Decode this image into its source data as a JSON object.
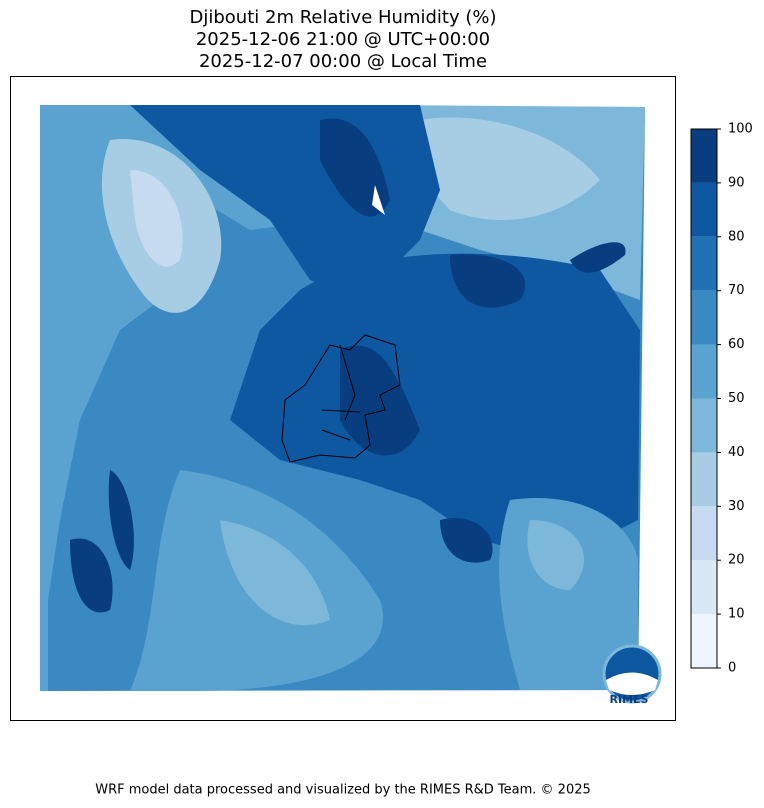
{
  "title": [
    "Djibouti 2m Relative Humidity (%)",
    "2025-12-06 21:00 @ UTC+00:00",
    "2025-12-07 00:00 @ Local Time"
  ],
  "colorbar": {
    "ticks": [
      0,
      10,
      20,
      30,
      40,
      50,
      60,
      70,
      80,
      90,
      100
    ],
    "colors": [
      "#eff5fc",
      "#d9e8f5",
      "#c6dbef",
      "#a6cde4",
      "#7db8da",
      "#5aa2cf",
      "#3b89c2",
      "#2070b4",
      "#0e58a2",
      "#083d7f"
    ]
  },
  "logo": "RIMES",
  "footer": "WRF model data processed and visualized by the RIMES R&D Team. © 2025"
}
